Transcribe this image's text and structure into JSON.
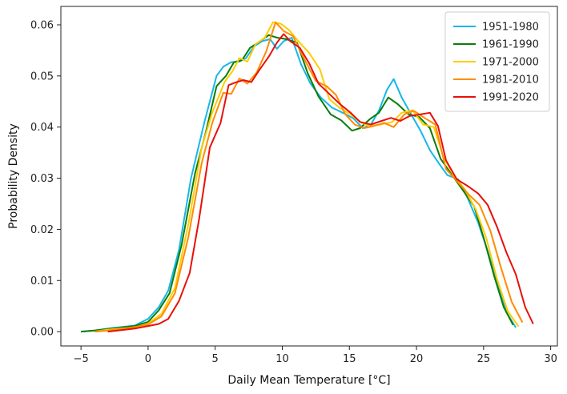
{
  "chart_data": {
    "type": "line",
    "title": "",
    "xlabel": "Daily Mean Temperature [°C]",
    "ylabel": "Probability Density",
    "xlim": [
      -6.5,
      30.5
    ],
    "ylim": [
      -0.0028,
      0.0636
    ],
    "x_ticks": [
      -5,
      0,
      5,
      10,
      15,
      20,
      25,
      30
    ],
    "x_tick_labels": [
      "−5",
      "0",
      "5",
      "10",
      "15",
      "20",
      "25",
      "30"
    ],
    "y_ticks": [
      0.0,
      0.01,
      0.02,
      0.03,
      0.04,
      0.05,
      0.06
    ],
    "y_tick_labels": [
      "0.00",
      "0.01",
      "0.02",
      "0.03",
      "0.04",
      "0.05",
      "0.06"
    ],
    "grid": false,
    "legend_position": "top-right",
    "series": [
      {
        "name": "1951-1980",
        "color": "#17b6ea",
        "points": [
          [
            -5,
            0.0
          ],
          [
            -4,
            0.0002
          ],
          [
            -3,
            0.0006
          ],
          [
            -2,
            0.0009
          ],
          [
            -1,
            0.0012
          ],
          [
            0,
            0.0025
          ],
          [
            0.8,
            0.0048
          ],
          [
            1.5,
            0.008
          ],
          [
            2.3,
            0.016
          ],
          [
            3.2,
            0.03
          ],
          [
            4.2,
            0.041
          ],
          [
            5.1,
            0.05
          ],
          [
            5.6,
            0.0518
          ],
          [
            6.2,
            0.0527
          ],
          [
            6.8,
            0.0528
          ],
          [
            7.3,
            0.0535
          ],
          [
            7.9,
            0.0558
          ],
          [
            8.5,
            0.0568
          ],
          [
            9.1,
            0.0572
          ],
          [
            9.6,
            0.0553
          ],
          [
            10.1,
            0.0568
          ],
          [
            10.7,
            0.0575
          ],
          [
            11.4,
            0.0523
          ],
          [
            12.1,
            0.0485
          ],
          [
            12.9,
            0.0457
          ],
          [
            13.7,
            0.0438
          ],
          [
            14.5,
            0.0428
          ],
          [
            15.3,
            0.0417
          ],
          [
            16,
            0.0398
          ],
          [
            16.6,
            0.0405
          ],
          [
            17.2,
            0.0432
          ],
          [
            17.8,
            0.0473
          ],
          [
            18.3,
            0.0494
          ],
          [
            18.9,
            0.0458
          ],
          [
            19.6,
            0.0425
          ],
          [
            20.3,
            0.0393
          ],
          [
            21,
            0.0355
          ],
          [
            21.7,
            0.0328
          ],
          [
            22.3,
            0.0306
          ],
          [
            23.1,
            0.0298
          ],
          [
            23.8,
            0.0262
          ],
          [
            24.6,
            0.0213
          ],
          [
            25.3,
            0.0158
          ],
          [
            26,
            0.0098
          ],
          [
            26.7,
            0.0038
          ],
          [
            27.4,
            0.0008
          ]
        ]
      },
      {
        "name": "1961-1990",
        "color": "#0a7d0a",
        "points": [
          [
            -5,
            0.0
          ],
          [
            -4,
            0.0002
          ],
          [
            -3,
            0.0005
          ],
          [
            -2,
            0.0008
          ],
          [
            -1,
            0.0011
          ],
          [
            0,
            0.0019
          ],
          [
            0.8,
            0.0042
          ],
          [
            1.6,
            0.0075
          ],
          [
            2.5,
            0.017
          ],
          [
            3.5,
            0.031
          ],
          [
            4.3,
            0.039
          ],
          [
            5.1,
            0.048
          ],
          [
            5.8,
            0.05
          ],
          [
            6.4,
            0.0527
          ],
          [
            7,
            0.0531
          ],
          [
            7.6,
            0.0555
          ],
          [
            8.3,
            0.0567
          ],
          [
            9,
            0.058
          ],
          [
            9.6,
            0.0575
          ],
          [
            10.3,
            0.0572
          ],
          [
            11.1,
            0.0565
          ],
          [
            11.9,
            0.0505
          ],
          [
            12.7,
            0.046
          ],
          [
            13.6,
            0.0425
          ],
          [
            14.4,
            0.0413
          ],
          [
            15.2,
            0.0393
          ],
          [
            15.8,
            0.0398
          ],
          [
            16.5,
            0.0415
          ],
          [
            17.2,
            0.0428
          ],
          [
            17.9,
            0.0458
          ],
          [
            18.6,
            0.0445
          ],
          [
            19.4,
            0.0425
          ],
          [
            20.2,
            0.042
          ],
          [
            21,
            0.0398
          ],
          [
            21.8,
            0.0338
          ],
          [
            22.6,
            0.0308
          ],
          [
            23.5,
            0.0275
          ],
          [
            24.3,
            0.0245
          ],
          [
            25.1,
            0.0175
          ],
          [
            25.8,
            0.0108
          ],
          [
            26.5,
            0.0048
          ],
          [
            27.2,
            0.0013
          ]
        ]
      },
      {
        "name": "1971-2000",
        "color": "#ffcc00",
        "points": [
          [
            -4,
            0.0
          ],
          [
            -3,
            0.0004
          ],
          [
            -2,
            0.0006
          ],
          [
            -1,
            0.0008
          ],
          [
            0,
            0.0016
          ],
          [
            1,
            0.0035
          ],
          [
            2,
            0.0085
          ],
          [
            3,
            0.021
          ],
          [
            4,
            0.036
          ],
          [
            4.8,
            0.043
          ],
          [
            5.7,
            0.0488
          ],
          [
            6.3,
            0.051
          ],
          [
            6.8,
            0.0535
          ],
          [
            7.4,
            0.0528
          ],
          [
            8,
            0.0562
          ],
          [
            8.7,
            0.0575
          ],
          [
            9.3,
            0.0605
          ],
          [
            9.9,
            0.0602
          ],
          [
            10.5,
            0.059
          ],
          [
            11.2,
            0.0568
          ],
          [
            12,
            0.0545
          ],
          [
            12.8,
            0.0513
          ],
          [
            13.5,
            0.0455
          ],
          [
            14.3,
            0.0437
          ],
          [
            15.1,
            0.0425
          ],
          [
            15.8,
            0.041
          ],
          [
            16.5,
            0.0402
          ],
          [
            17.3,
            0.0405
          ],
          [
            18.2,
            0.041
          ],
          [
            18.9,
            0.0428
          ],
          [
            19.7,
            0.0433
          ],
          [
            20.5,
            0.0405
          ],
          [
            21.3,
            0.04
          ],
          [
            22,
            0.0342
          ],
          [
            22.8,
            0.0305
          ],
          [
            23.6,
            0.0278
          ],
          [
            24.4,
            0.024
          ],
          [
            25.2,
            0.0183
          ],
          [
            26,
            0.0103
          ],
          [
            26.8,
            0.004
          ],
          [
            27.6,
            0.001
          ]
        ]
      },
      {
        "name": "1981-2010",
        "color": "#ff8c00",
        "points": [
          [
            -4,
            0.0
          ],
          [
            -3,
            0.0002
          ],
          [
            -2,
            0.0005
          ],
          [
            -1,
            0.0009
          ],
          [
            0,
            0.0014
          ],
          [
            1,
            0.003
          ],
          [
            2,
            0.0075
          ],
          [
            3,
            0.0185
          ],
          [
            4,
            0.033
          ],
          [
            4.8,
            0.041
          ],
          [
            5.6,
            0.0467
          ],
          [
            6.2,
            0.0465
          ],
          [
            6.8,
            0.0495
          ],
          [
            7.4,
            0.0485
          ],
          [
            8.1,
            0.0507
          ],
          [
            8.8,
            0.0548
          ],
          [
            9.5,
            0.0605
          ],
          [
            10.1,
            0.0588
          ],
          [
            10.8,
            0.0578
          ],
          [
            11.6,
            0.0535
          ],
          [
            12.5,
            0.049
          ],
          [
            13.3,
            0.048
          ],
          [
            14,
            0.0463
          ],
          [
            14.7,
            0.0425
          ],
          [
            15.4,
            0.0405
          ],
          [
            16.1,
            0.0398
          ],
          [
            16.8,
            0.0402
          ],
          [
            17.6,
            0.0408
          ],
          [
            18.3,
            0.04
          ],
          [
            19.1,
            0.0425
          ],
          [
            19.8,
            0.0432
          ],
          [
            20.6,
            0.0418
          ],
          [
            21.4,
            0.0405
          ],
          [
            22.2,
            0.0318
          ],
          [
            23.1,
            0.0292
          ],
          [
            23.9,
            0.0268
          ],
          [
            24.7,
            0.0248
          ],
          [
            25.5,
            0.0198
          ],
          [
            26.3,
            0.0125
          ],
          [
            27.1,
            0.0058
          ],
          [
            27.9,
            0.0018
          ]
        ]
      },
      {
        "name": "1991-2020",
        "color": "#e8100a",
        "points": [
          [
            -3,
            0.0
          ],
          [
            -2,
            0.0003
          ],
          [
            -1,
            0.0006
          ],
          [
            0,
            0.0011
          ],
          [
            0.8,
            0.0015
          ],
          [
            1.5,
            0.0025
          ],
          [
            2.3,
            0.006
          ],
          [
            3.1,
            0.0115
          ],
          [
            3.8,
            0.022
          ],
          [
            4.6,
            0.036
          ],
          [
            5.4,
            0.0408
          ],
          [
            6,
            0.0482
          ],
          [
            6.5,
            0.0487
          ],
          [
            7.1,
            0.0492
          ],
          [
            7.7,
            0.0488
          ],
          [
            8.3,
            0.0512
          ],
          [
            9,
            0.0538
          ],
          [
            9.6,
            0.0565
          ],
          [
            10.1,
            0.0582
          ],
          [
            10.6,
            0.0568
          ],
          [
            11.3,
            0.0555
          ],
          [
            12,
            0.0525
          ],
          [
            12.7,
            0.0485
          ],
          [
            13.5,
            0.0465
          ],
          [
            14.3,
            0.0445
          ],
          [
            15.1,
            0.0428
          ],
          [
            15.8,
            0.041
          ],
          [
            16.6,
            0.0405
          ],
          [
            17.4,
            0.0412
          ],
          [
            18.1,
            0.0418
          ],
          [
            18.8,
            0.0412
          ],
          [
            19.5,
            0.0422
          ],
          [
            20.3,
            0.0425
          ],
          [
            21,
            0.0428
          ],
          [
            21.6,
            0.0402
          ],
          [
            22.2,
            0.0335
          ],
          [
            23,
            0.0298
          ],
          [
            23.8,
            0.0285
          ],
          [
            24.6,
            0.027
          ],
          [
            25.3,
            0.0248
          ],
          [
            26,
            0.0205
          ],
          [
            26.7,
            0.0155
          ],
          [
            27.4,
            0.0112
          ],
          [
            28.1,
            0.0048
          ],
          [
            28.7,
            0.0015
          ]
        ]
      }
    ]
  }
}
